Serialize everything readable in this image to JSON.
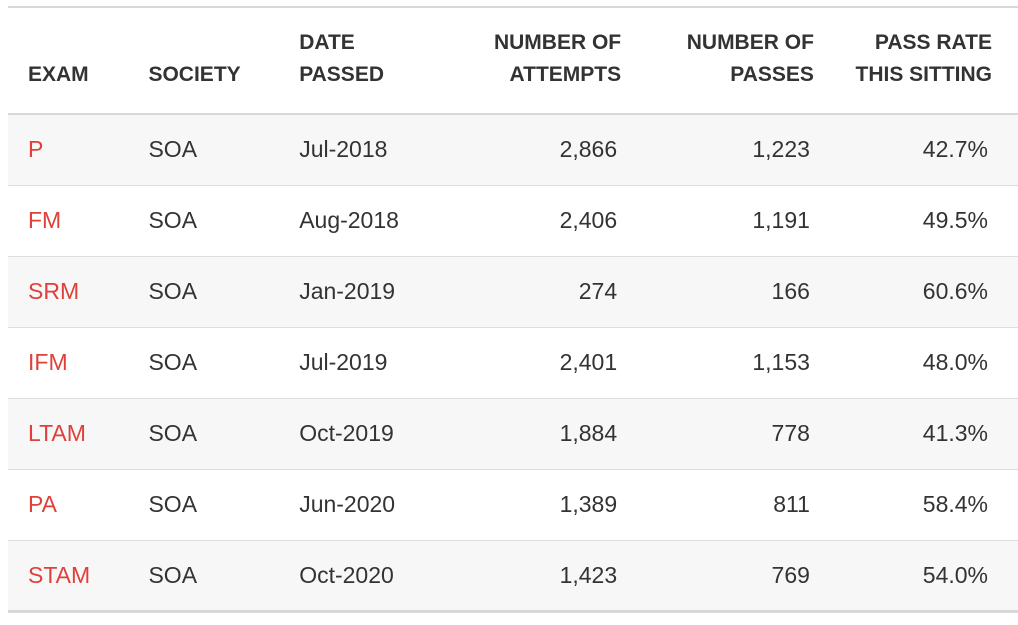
{
  "table": {
    "headers": {
      "exam": [
        "EXAM"
      ],
      "society": [
        "SOCIETY"
      ],
      "date_passed": [
        "DATE",
        "PASSED"
      ],
      "attempts": [
        "NUMBER OF",
        "ATTEMPTS"
      ],
      "passes": [
        "NUMBER OF",
        "PASSES"
      ],
      "pass_rate": [
        "PASS RATE",
        "THIS SITTING"
      ]
    },
    "rows": [
      {
        "exam": "P",
        "society": "SOA",
        "date_passed": "Jul-2018",
        "attempts": "2,866",
        "passes": "1,223",
        "pass_rate": "42.7%"
      },
      {
        "exam": "FM",
        "society": "SOA",
        "date_passed": "Aug-2018",
        "attempts": "2,406",
        "passes": "1,191",
        "pass_rate": "49.5%"
      },
      {
        "exam": "SRM",
        "society": "SOA",
        "date_passed": "Jan-2019",
        "attempts": "274",
        "passes": "166",
        "pass_rate": "60.6%"
      },
      {
        "exam": "IFM",
        "society": "SOA",
        "date_passed": "Jul-2019",
        "attempts": "2,401",
        "passes": "1,153",
        "pass_rate": "48.0%"
      },
      {
        "exam": "LTAM",
        "society": "SOA",
        "date_passed": "Oct-2019",
        "attempts": "1,884",
        "passes": "778",
        "pass_rate": "41.3%"
      },
      {
        "exam": "PA",
        "society": "SOA",
        "date_passed": "Jun-2020",
        "attempts": "1,389",
        "passes": "811",
        "pass_rate": "58.4%"
      },
      {
        "exam": "STAM",
        "society": "SOA",
        "date_passed": "Oct-2020",
        "attempts": "1,423",
        "passes": "769",
        "pass_rate": "54.0%"
      }
    ]
  },
  "colors": {
    "link": "#e0403a",
    "text": "#333333",
    "stripe": "#f7f7f7",
    "rule": "#d8d8d8"
  }
}
